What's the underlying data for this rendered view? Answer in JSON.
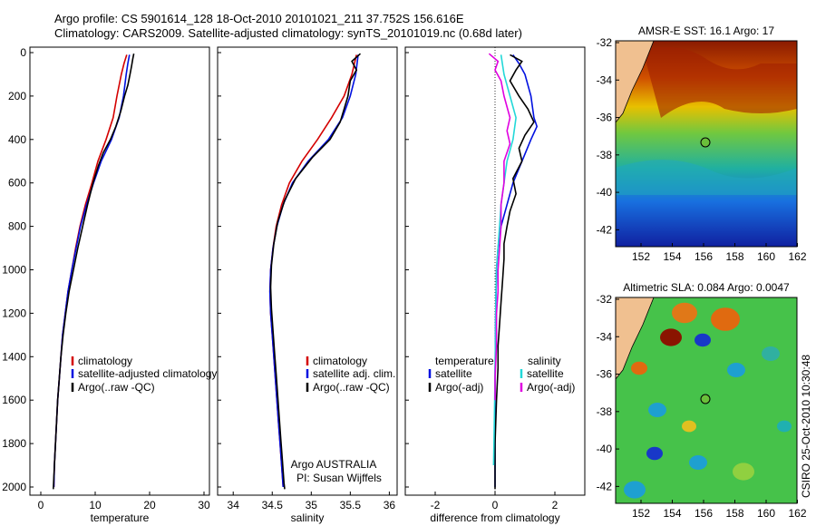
{
  "header": {
    "line1": "Argo profile: CS 5901614_128 18-Oct-2010 20101021_211 37.752S 156.616E",
    "line2": "Climatology: CARS2009. Satellite-adjusted climatology: synTS_20101019.nc (0.68d later)"
  },
  "colors": {
    "climatology": "#d40000",
    "satellite": "#0010e0",
    "argo": "#000000",
    "satellite_sal": "#22d8d8",
    "argo_sal": "#e000e0"
  },
  "chart_data": [
    {
      "type": "line",
      "panel": "temperature",
      "xlabel": "temperature",
      "ylabel": "",
      "xlim": [
        -2,
        31
      ],
      "ylim": [
        2080,
        0
      ],
      "xticks": [
        0,
        10,
        20,
        30
      ],
      "yticks": [
        0,
        200,
        400,
        600,
        800,
        1000,
        1200,
        1400,
        1600,
        1800,
        2000
      ],
      "legend": [
        "climatology",
        "satellite-adjusted climatology",
        "Argo(..raw -QC)"
      ],
      "series": [
        {
          "name": "climatology",
          "color": "#d40000",
          "points": [
            [
              15.8,
              10
            ],
            [
              15.3,
              50
            ],
            [
              14.8,
              100
            ],
            [
              14.0,
              200
            ],
            [
              13.3,
              300
            ],
            [
              12.0,
              400
            ],
            [
              10.5,
              500
            ],
            [
              9.4,
              600
            ],
            [
              8.2,
              700
            ],
            [
              7.2,
              800
            ],
            [
              6.4,
              900
            ],
            [
              5.7,
              1000
            ],
            [
              5.0,
              1100
            ],
            [
              4.5,
              1200
            ],
            [
              4.0,
              1300
            ],
            [
              3.7,
              1400
            ],
            [
              3.4,
              1500
            ],
            [
              3.1,
              1600
            ],
            [
              2.9,
              1700
            ],
            [
              2.7,
              1800
            ],
            [
              2.5,
              1900
            ],
            [
              2.4,
              2000
            ]
          ]
        },
        {
          "name": "satellite-adjusted climatology",
          "color": "#0010e0",
          "points": [
            [
              16.3,
              10
            ],
            [
              16.0,
              50
            ],
            [
              15.7,
              100
            ],
            [
              15.2,
              200
            ],
            [
              14.4,
              300
            ],
            [
              13.0,
              400
            ],
            [
              11.1,
              500
            ],
            [
              9.7,
              600
            ],
            [
              8.4,
              700
            ],
            [
              7.3,
              800
            ],
            [
              6.5,
              900
            ],
            [
              5.7,
              1000
            ],
            [
              5.0,
              1100
            ],
            [
              4.5,
              1200
            ],
            [
              4.0,
              1300
            ],
            [
              3.7,
              1400
            ],
            [
              3.4,
              1500
            ],
            [
              3.1,
              1600
            ],
            [
              2.9,
              1700
            ],
            [
              2.7,
              1800
            ],
            [
              2.5,
              1900
            ],
            [
              2.4,
              2000
            ]
          ]
        },
        {
          "name": "Argo(..raw -QC)",
          "color": "#000000",
          "points": [
            [
              17.1,
              5
            ],
            [
              16.9,
              30
            ],
            [
              16.7,
              60
            ],
            [
              16.4,
              100
            ],
            [
              16.0,
              150
            ],
            [
              15.4,
              200
            ],
            [
              14.7,
              270
            ],
            [
              13.8,
              340
            ],
            [
              12.8,
              400
            ],
            [
              11.5,
              460
            ],
            [
              10.6,
              520
            ],
            [
              9.6,
              600
            ],
            [
              8.6,
              700
            ],
            [
              7.7,
              800
            ],
            [
              6.8,
              900
            ],
            [
              6.0,
              1000
            ],
            [
              5.2,
              1100
            ],
            [
              4.6,
              1200
            ],
            [
              4.1,
              1300
            ],
            [
              3.7,
              1400
            ],
            [
              3.4,
              1500
            ],
            [
              3.1,
              1600
            ],
            [
              2.9,
              1700
            ],
            [
              2.7,
              1800
            ],
            [
              2.5,
              1900
            ],
            [
              2.3,
              2010
            ]
          ]
        }
      ]
    },
    {
      "type": "line",
      "panel": "salinity",
      "xlabel": "salinity",
      "ylabel": "",
      "xlim": [
        33.8,
        36.1
      ],
      "ylim": [
        2080,
        0
      ],
      "xticks": [
        34,
        34.5,
        35,
        35.5,
        36
      ],
      "legend": [
        "climatology",
        "satellite adj. clim.",
        "Argo(..raw -QC)"
      ],
      "annotations": [
        "Argo AUSTRALIA",
        "PI: Susan Wijffels"
      ],
      "series": [
        {
          "name": "climatology",
          "color": "#d40000",
          "points": [
            [
              35.58,
              10
            ],
            [
              35.52,
              100
            ],
            [
              35.42,
              200
            ],
            [
              35.26,
              300
            ],
            [
              35.08,
              400
            ],
            [
              34.88,
              500
            ],
            [
              34.72,
              600
            ],
            [
              34.62,
              700
            ],
            [
              34.55,
              800
            ],
            [
              34.51,
              900
            ],
            [
              34.48,
              1000
            ],
            [
              34.47,
              1100
            ],
            [
              34.48,
              1200
            ],
            [
              34.5,
              1300
            ],
            [
              34.52,
              1400
            ],
            [
              34.54,
              1500
            ],
            [
              34.56,
              1600
            ],
            [
              34.58,
              1700
            ],
            [
              34.6,
              1800
            ],
            [
              34.62,
              1900
            ],
            [
              34.64,
              2000
            ]
          ]
        },
        {
          "name": "satellite adj. clim.",
          "color": "#0010e0",
          "points": [
            [
              35.6,
              10
            ],
            [
              35.57,
              100
            ],
            [
              35.5,
              200
            ],
            [
              35.4,
              300
            ],
            [
              35.22,
              400
            ],
            [
              34.96,
              500
            ],
            [
              34.76,
              600
            ],
            [
              34.64,
              700
            ],
            [
              34.56,
              800
            ],
            [
              34.51,
              900
            ],
            [
              34.48,
              1000
            ],
            [
              34.47,
              1100
            ],
            [
              34.48,
              1200
            ],
            [
              34.5,
              1300
            ],
            [
              34.52,
              1400
            ],
            [
              34.54,
              1500
            ],
            [
              34.56,
              1600
            ],
            [
              34.58,
              1700
            ],
            [
              34.6,
              1800
            ],
            [
              34.62,
              1900
            ],
            [
              34.64,
              2000
            ]
          ]
        },
        {
          "name": "Argo(..raw -QC)",
          "color": "#000000",
          "points": [
            [
              35.63,
              5
            ],
            [
              35.52,
              40
            ],
            [
              35.58,
              80
            ],
            [
              35.5,
              130
            ],
            [
              35.47,
              200
            ],
            [
              35.42,
              260
            ],
            [
              35.37,
              320
            ],
            [
              35.24,
              400
            ],
            [
              35.02,
              480
            ],
            [
              34.8,
              580
            ],
            [
              34.66,
              680
            ],
            [
              34.57,
              780
            ],
            [
              34.52,
              880
            ],
            [
              34.49,
              980
            ],
            [
              34.48,
              1080
            ],
            [
              34.49,
              1180
            ],
            [
              34.51,
              1280
            ],
            [
              34.53,
              1380
            ],
            [
              34.55,
              1480
            ],
            [
              34.57,
              1580
            ],
            [
              34.59,
              1680
            ],
            [
              34.61,
              1780
            ],
            [
              34.63,
              1880
            ],
            [
              34.65,
              1980
            ],
            [
              34.66,
              2010
            ]
          ]
        }
      ]
    },
    {
      "type": "line",
      "panel": "difference",
      "xlabel": "difference from climatology",
      "ylabel": "",
      "xlim": [
        -3,
        3
      ],
      "ylim": [
        2080,
        0
      ],
      "xticks": [
        -2,
        0,
        2
      ],
      "legend_left_title": "temperature",
      "legend_right_title": "salinity",
      "legend": [
        "satellite",
        "Argo(-adj)",
        "satellite",
        "Argo(-adj)"
      ],
      "series": [
        {
          "name": "satellite",
          "group": "temperature",
          "color": "#0010e0",
          "points": [
            [
              0.6,
              10
            ],
            [
              0.8,
              50
            ],
            [
              1.0,
              100
            ],
            [
              1.2,
              200
            ],
            [
              1.3,
              300
            ],
            [
              1.4,
              340
            ],
            [
              1.2,
              400
            ],
            [
              0.9,
              500
            ],
            [
              0.6,
              600
            ],
            [
              0.4,
              700
            ],
            [
              0.2,
              800
            ],
            [
              0.1,
              900
            ],
            [
              0.05,
              1000
            ],
            [
              0.02,
              1200
            ],
            [
              0.0,
              1500
            ],
            [
              0.0,
              2000
            ]
          ]
        },
        {
          "name": "Argo(-adj)",
          "group": "temperature",
          "color": "#000000",
          "points": [
            [
              0.5,
              10
            ],
            [
              0.9,
              40
            ],
            [
              0.7,
              80
            ],
            [
              0.5,
              130
            ],
            [
              0.8,
              200
            ],
            [
              1.1,
              260
            ],
            [
              1.3,
              320
            ],
            [
              1.0,
              380
            ],
            [
              0.8,
              440
            ],
            [
              0.9,
              500
            ],
            [
              0.6,
              580
            ],
            [
              0.7,
              650
            ],
            [
              0.5,
              730
            ],
            [
              0.4,
              800
            ],
            [
              0.3,
              880
            ],
            [
              0.3,
              950
            ],
            [
              0.25,
              1050
            ],
            [
              0.2,
              1150
            ],
            [
              0.15,
              1250
            ],
            [
              0.1,
              1350
            ],
            [
              0.1,
              1450
            ],
            [
              0.05,
              1600
            ],
            [
              0.0,
              1800
            ],
            [
              0.0,
              2010
            ]
          ]
        },
        {
          "name": "satellite",
          "group": "salinity",
          "color": "#22d8d8",
          "points": [
            [
              0.2,
              10
            ],
            [
              0.3,
              100
            ],
            [
              0.5,
              200
            ],
            [
              0.7,
              300
            ],
            [
              0.6,
              400
            ],
            [
              0.4,
              500
            ],
            [
              0.3,
              600
            ],
            [
              0.2,
              700
            ],
            [
              0.15,
              800
            ],
            [
              0.1,
              900
            ],
            [
              0.05,
              1000
            ],
            [
              0.02,
              1200
            ],
            [
              0.0,
              1500
            ],
            [
              -0.05,
              1900
            ]
          ]
        },
        {
          "name": "Argo(-adj)",
          "group": "salinity",
          "color": "#e000e0",
          "points": [
            [
              -0.2,
              5
            ],
            [
              0.1,
              40
            ],
            [
              0.0,
              80
            ],
            [
              0.2,
              130
            ],
            [
              0.3,
              200
            ],
            [
              0.5,
              300
            ],
            [
              0.4,
              360
            ],
            [
              0.5,
              420
            ],
            [
              0.3,
              500
            ],
            [
              0.3,
              600
            ],
            [
              0.2,
              700
            ],
            [
              0.2,
              800
            ],
            [
              0.15,
              900
            ],
            [
              0.1,
              1000
            ],
            [
              0.1,
              1100
            ],
            [
              0.05,
              1200
            ],
            [
              0.05,
              1350
            ],
            [
              0.0,
              1500
            ],
            [
              0.0,
              1600
            ]
          ]
        }
      ]
    }
  ],
  "maps": [
    {
      "title": "AMSR-E SST: 16.1  Argo: 17",
      "lat_ticks": [
        "-32",
        "-34",
        "-36",
        "-38",
        "-40",
        "-42"
      ],
      "lon_ticks": [
        "152",
        "154",
        "156",
        "158",
        "160",
        "162"
      ]
    },
    {
      "title": "Altimetric SLA: 0.084  Argo: 0.0047",
      "lat_ticks": [
        "-32",
        "-34",
        "-36",
        "-38",
        "-40",
        "-42"
      ],
      "lon_ticks": [
        "152",
        "154",
        "156",
        "158",
        "160",
        "162"
      ]
    }
  ],
  "stamp": "CSIRO 25-Oct-2010 10:30:48"
}
